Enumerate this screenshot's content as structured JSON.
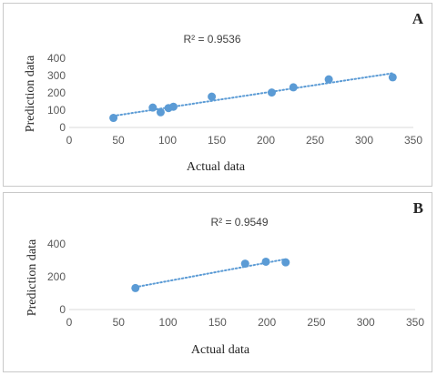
{
  "chart_data": [
    {
      "type": "scatter",
      "panel_label": "A",
      "annotation": "R² = 0.9536",
      "xlabel": "Actual data",
      "ylabel": "Prediction data",
      "xlim": [
        0,
        350
      ],
      "ylim": [
        0,
        400
      ],
      "x_ticks": [
        "0",
        "50",
        "100",
        "150",
        "200",
        "250",
        "300",
        "350"
      ],
      "y_ticks": [
        "0",
        "100",
        "200",
        "300",
        "400"
      ],
      "trendline": "linear, dotted",
      "grid": false,
      "color": "#5B9BD5",
      "points": [
        {
          "x": 45,
          "y": 55
        },
        {
          "x": 85,
          "y": 115
        },
        {
          "x": 93,
          "y": 88
        },
        {
          "x": 101,
          "y": 112
        },
        {
          "x": 106,
          "y": 120
        },
        {
          "x": 145,
          "y": 178
        },
        {
          "x": 206,
          "y": 202
        },
        {
          "x": 228,
          "y": 232
        },
        {
          "x": 264,
          "y": 278
        },
        {
          "x": 329,
          "y": 290
        }
      ]
    },
    {
      "type": "scatter",
      "panel_label": "B",
      "annotation": "R² = 0.9549",
      "xlabel": "Actual data",
      "ylabel": "Prediction data",
      "xlim": [
        0,
        350
      ],
      "ylim": [
        0,
        400
      ],
      "x_ticks": [
        "0",
        "50",
        "100",
        "150",
        "200",
        "250",
        "300",
        "350"
      ],
      "y_ticks": [
        "0",
        "200",
        "400"
      ],
      "trendline": "linear, dotted",
      "grid": false,
      "color": "#5B9BD5",
      "points": [
        {
          "x": 67,
          "y": 131
        },
        {
          "x": 178,
          "y": 280
        },
        {
          "x": 199,
          "y": 292
        },
        {
          "x": 219,
          "y": 288
        }
      ]
    }
  ]
}
